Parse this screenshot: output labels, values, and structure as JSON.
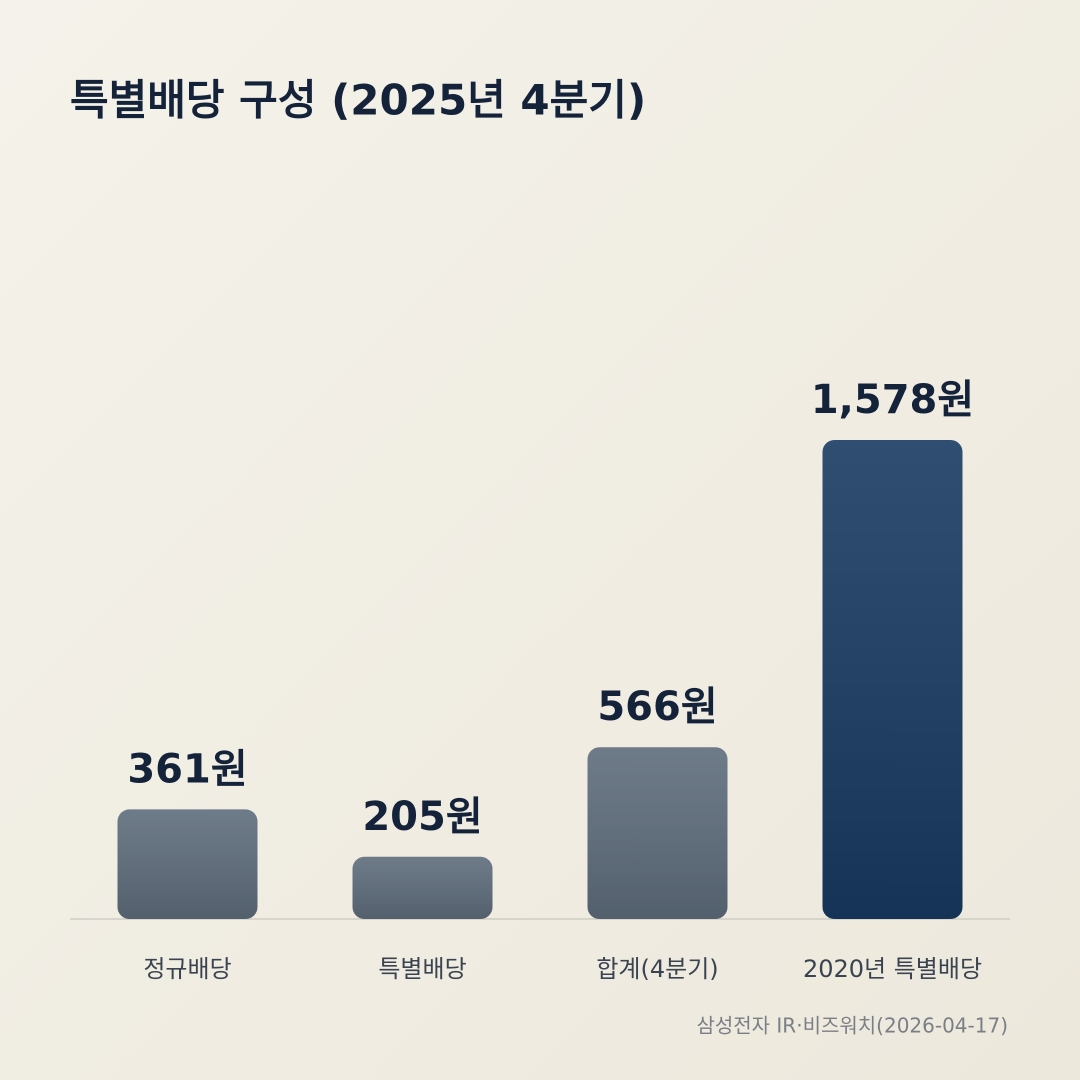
{
  "chart_data": {
    "type": "bar",
    "title": "특별배당 구성 (2025년 4분기)",
    "categories": [
      "정규배당",
      "특별배당",
      "합계(4분기)",
      "2020년 특별배당"
    ],
    "values": [
      361,
      205,
      566,
      1578
    ],
    "value_labels": [
      "361원",
      "205원",
      "566원",
      "1,578원"
    ],
    "colors": [
      "#5e6c7b",
      "#5e6c7b",
      "#5e6c7b",
      "#183a62"
    ],
    "source": "삼성전자 IR·비즈워치(2026-04-17)"
  }
}
